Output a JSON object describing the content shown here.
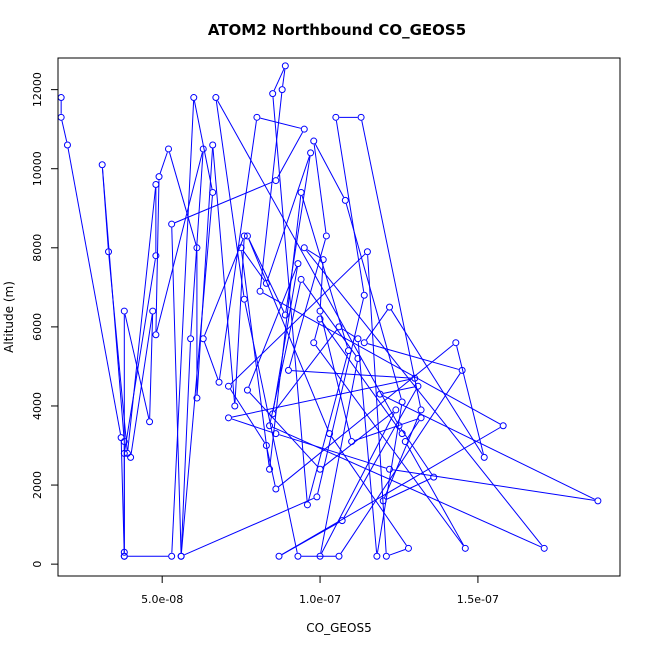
{
  "chart_data": {
    "type": "line",
    "title": "ATOM2 Northbound CO_GEOS5",
    "xlabel": "CO_GEOS5",
    "ylabel": "Altitude (m)",
    "xlim": [
      1.7e-08,
      1.95e-07
    ],
    "ylim": [
      -300,
      12800
    ],
    "x_ticks": [
      5e-08,
      1e-07,
      1.5e-07
    ],
    "x_tick_labels": [
      "5.0e-08",
      "1.0e-07",
      "1.5e-07"
    ],
    "y_ticks": [
      0,
      2000,
      4000,
      6000,
      8000,
      10000,
      12000
    ],
    "y_tick_labels": [
      "0",
      "2000",
      "4000",
      "6000",
      "8000",
      "10000",
      "12000"
    ],
    "grid": false,
    "marker": "open-circle",
    "color": "#0000ff",
    "series": [
      {
        "points": [
          [
            1.8e-08,
            11800
          ],
          [
            1.8e-08,
            11300
          ],
          [
            2e-08,
            10600
          ],
          [
            3.7e-08,
            3200
          ],
          [
            3.8e-08,
            200
          ],
          [
            3.8e-08,
            300
          ],
          [
            3.8e-08,
            3100
          ],
          [
            3.1e-08,
            10100
          ],
          [
            3.3e-08,
            7900
          ],
          [
            3.9e-08,
            2800
          ],
          [
            4.8e-08,
            9600
          ],
          [
            4.8e-08,
            7800
          ],
          [
            3.8e-08,
            2800
          ],
          [
            4e-08,
            2700
          ],
          [
            4.7e-08,
            6400
          ],
          [
            4.6e-08,
            3600
          ],
          [
            3.8e-08,
            6400
          ],
          [
            3.8e-08,
            200
          ],
          [
            5.3e-08,
            200
          ],
          [
            6e-08,
            11800
          ],
          [
            6.6e-08,
            9400
          ],
          [
            5.6e-08,
            200
          ],
          [
            5.9e-08,
            5700
          ],
          [
            6.3e-08,
            10500
          ],
          [
            4.8e-08,
            5800
          ],
          [
            4.9e-08,
            9800
          ],
          [
            5.2e-08,
            10500
          ],
          [
            6.1e-08,
            8000
          ],
          [
            6.1e-08,
            4200
          ],
          [
            6.6e-08,
            10600
          ],
          [
            7.3e-08,
            4000
          ],
          [
            7.6e-08,
            8300
          ],
          [
            6.3e-08,
            5700
          ],
          [
            6.8e-08,
            4600
          ],
          [
            8e-08,
            11300
          ],
          [
            9.5e-08,
            11000
          ],
          [
            8.6e-08,
            9700
          ],
          [
            5.3e-08,
            8600
          ],
          [
            5.6e-08,
            200
          ],
          [
            9.9e-08,
            1700
          ],
          [
            1.14e-07,
            6800
          ],
          [
            1.05e-07,
            11300
          ],
          [
            1.13e-07,
            11300
          ],
          [
            1.32e-07,
            3900
          ],
          [
            1.2e-07,
            1600
          ],
          [
            1.36e-07,
            2200
          ],
          [
            1.25e-07,
            3500
          ],
          [
            6.7e-08,
            11800
          ],
          [
            7.6e-08,
            6700
          ],
          [
            9.3e-08,
            200
          ],
          [
            1.06e-07,
            200
          ],
          [
            1.45e-07,
            4900
          ],
          [
            1.14e-07,
            5600
          ],
          [
            1.22e-07,
            6500
          ],
          [
            1.52e-07,
            2700
          ],
          [
            1.43e-07,
            5600
          ],
          [
            8.6e-08,
            1900
          ],
          [
            8.3e-08,
            3000
          ],
          [
            7.1e-08,
            4500
          ],
          [
            1.15e-07,
            7900
          ],
          [
            1.21e-07,
            200
          ],
          [
            1.28e-07,
            400
          ],
          [
            1.03e-07,
            3300
          ],
          [
            7.7e-08,
            8300
          ],
          [
            8.9e-08,
            6300
          ],
          [
            9.7e-08,
            10400
          ],
          [
            8.3e-08,
            7100
          ],
          [
            7.5e-08,
            8000
          ],
          [
            8.4e-08,
            2400
          ],
          [
            9.4e-08,
            9400
          ],
          [
            1.09e-07,
            5400
          ],
          [
            9.6e-08,
            1500
          ],
          [
            8.5e-08,
            11900
          ],
          [
            8.9e-08,
            12600
          ],
          [
            8.8e-08,
            12000
          ],
          [
            8.1e-08,
            6900
          ],
          [
            1.58e-07,
            3500
          ],
          [
            8.7e-08,
            200
          ],
          [
            1.07e-07,
            1100
          ],
          [
            1.31e-07,
            4500
          ],
          [
            1.19e-07,
            4300
          ],
          [
            1.88e-07,
            1600
          ],
          [
            1.22e-07,
            2400
          ],
          [
            8.6e-08,
            3300
          ],
          [
            7.1e-08,
            3700
          ],
          [
            1.3e-07,
            4700
          ],
          [
            9e-08,
            4900
          ],
          [
            1.02e-07,
            8300
          ],
          [
            9.8e-08,
            10700
          ],
          [
            1.08e-07,
            9200
          ],
          [
            1.26e-07,
            4100
          ],
          [
            1.18e-07,
            200
          ],
          [
            1.12e-07,
            5700
          ],
          [
            1.06e-07,
            6000
          ],
          [
            8.5e-08,
            3800
          ],
          [
            9.3e-08,
            7600
          ],
          [
            7.7e-08,
            4400
          ],
          [
            1e-07,
            2400
          ],
          [
            1.24e-07,
            3900
          ],
          [
            1e-07,
            200
          ],
          [
            1.12e-07,
            5200
          ],
          [
            9.4e-08,
            7200
          ],
          [
            8.4e-08,
            3500
          ],
          [
            1.71e-07,
            400
          ],
          [
            9.5e-08,
            8000
          ],
          [
            1.01e-07,
            7700
          ],
          [
            1e-07,
            6400
          ],
          [
            1.1e-07,
            3100
          ],
          [
            1.32e-07,
            3700
          ],
          [
            1.27e-07,
            3100
          ],
          [
            1.46e-07,
            400
          ],
          [
            9.8e-08,
            5600
          ],
          [
            1e-07,
            6200
          ],
          [
            1.26e-07,
            3300
          ]
        ]
      }
    ]
  }
}
